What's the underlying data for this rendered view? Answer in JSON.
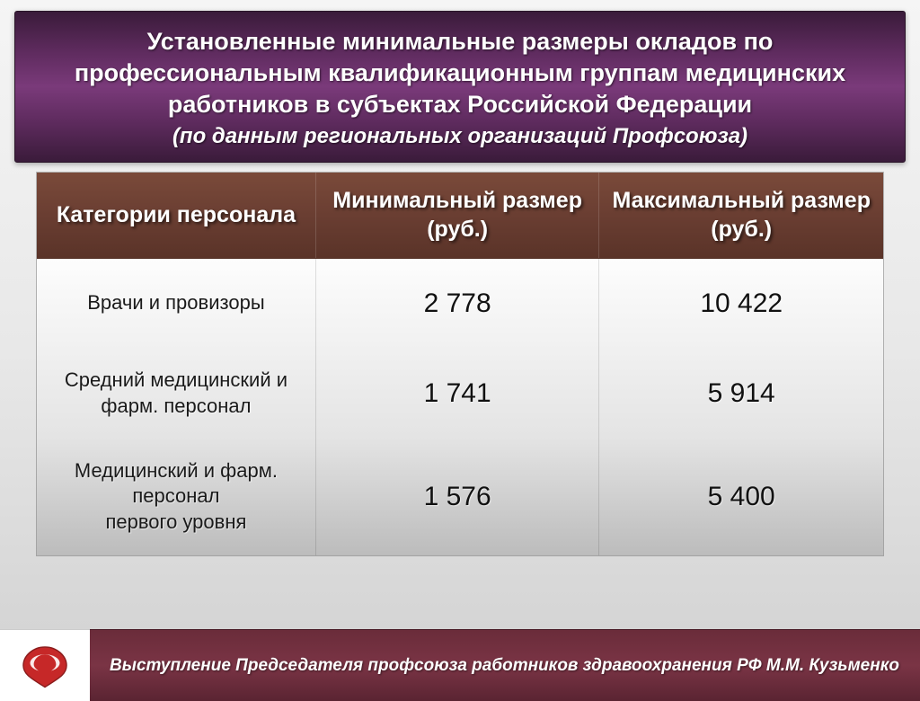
{
  "header": {
    "title_lines": "Установленные минимальные размеры окладов по профессиональным квалификационным группам медицинских работников в субъектах Российской Федерации",
    "subtitle": "(по данным региональных организаций Профсоюза)",
    "bg_gradient": [
      "#3a1b3a",
      "#7a3a7a",
      "#3a1b3a"
    ],
    "title_fontsize": 27,
    "subtitle_fontsize": 24,
    "text_color": "#ffffff"
  },
  "table": {
    "type": "table",
    "header_bg_gradient": [
      "#7a4a3a",
      "#5a3328"
    ],
    "body_bg_gradient": [
      "#fdfdfd",
      "#bcbcbc"
    ],
    "header_text_color": "#ffffff",
    "body_text_color": "#1a1a1a",
    "header_fontsize": 25,
    "label_fontsize": 22,
    "value_fontsize": 30,
    "columns": [
      {
        "label": "Категории персонала",
        "width_pct": 33
      },
      {
        "label": "Минимальный размер (руб.)",
        "width_pct": 33.5
      },
      {
        "label": "Максимальный размер (руб.)",
        "width_pct": 33.5
      }
    ],
    "rows": [
      {
        "category": "Врачи и провизоры",
        "min": "2 778",
        "max": "10 422"
      },
      {
        "category": "Средний медицинский и фарм. персонал",
        "min": "1 741",
        "max": "5 914"
      },
      {
        "category": "Медицинский и фарм. персонал\nпервого уровня",
        "min": "1 576",
        "max": "5 400"
      }
    ]
  },
  "footer": {
    "text": "Выступление Председателя профсоюза работников здравоохранения РФ М.М. Кузьменко",
    "bg_gradient": [
      "#6a2c3a",
      "#5a2432"
    ],
    "text_color": "#ffffff",
    "fontsize": 19,
    "logo_colors": {
      "red": "#c62828",
      "white": "#ffffff",
      "outline": "#8a1c1c"
    }
  }
}
